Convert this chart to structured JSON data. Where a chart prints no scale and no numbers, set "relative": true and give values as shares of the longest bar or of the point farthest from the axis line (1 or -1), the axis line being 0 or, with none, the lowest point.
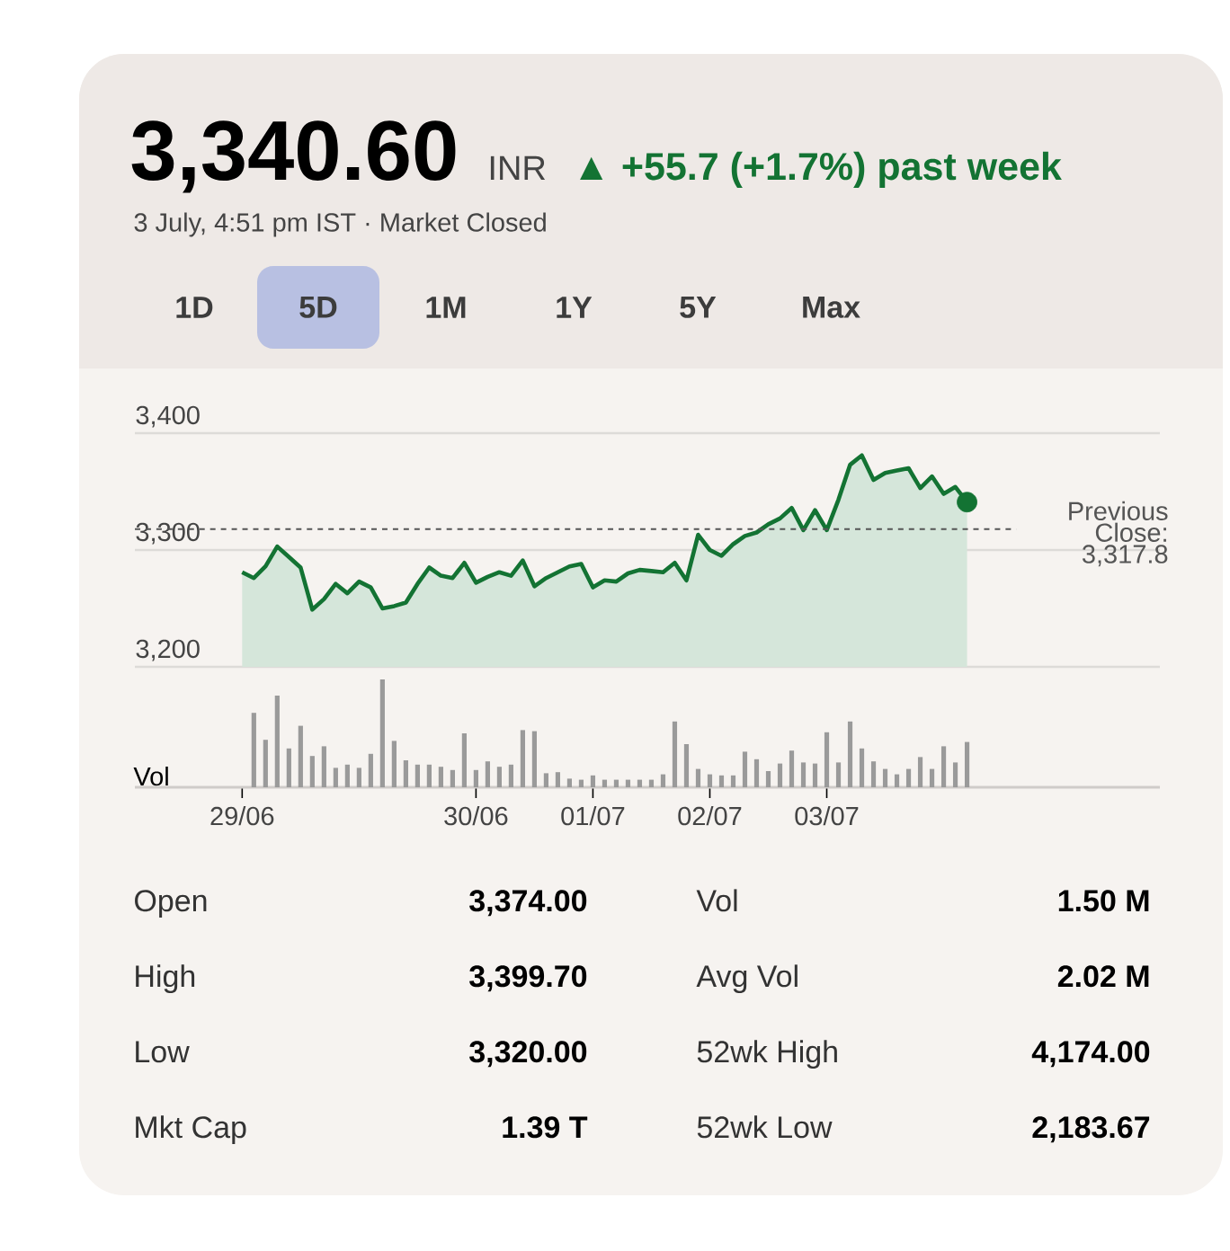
{
  "chart_data": [
    {
      "type": "area",
      "title": "3,340.60",
      "subtitle": "3 July, 4:51 pm IST · Market Closed",
      "annotations": [
        "INR",
        "▲ +55.7 (+1.7%) past week",
        "1D",
        "5D",
        "1M",
        "1Y",
        "5Y",
        "Max"
      ],
      "categories": [
        null,
        null,
        null,
        null,
        null,
        null,
        null,
        null,
        null,
        null,
        null,
        null,
        null,
        null,
        null,
        null,
        null,
        null,
        null,
        null,
        null,
        null,
        null,
        null,
        null,
        null,
        null,
        null,
        null,
        null,
        null,
        null,
        null,
        null,
        null,
        null,
        null,
        null,
        null,
        null,
        null,
        null,
        null,
        null,
        null,
        null,
        null,
        null,
        null,
        null,
        null,
        null,
        null,
        null,
        null,
        null,
        null,
        null,
        null,
        null,
        null,
        null,
        null
      ],
      "series": [
        {
          "type": "area",
          "color": "#137333",
          "values": [
            3281,
            3276,
            3286,
            3303,
            3294,
            3285,
            3249,
            3258,
            3271,
            3263,
            3273,
            3268,
            3250,
            3252,
            3255,
            3271,
            3285,
            3278,
            3276,
            3289,
            3272,
            3277,
            3281,
            3278,
            3291,
            3269,
            3276,
            3281,
            3286,
            3288,
            3268,
            3274,
            3273,
            3280,
            3283,
            3282,
            3281,
            3289,
            3274,
            3313,
            3300,
            3295,
            3305,
            3312,
            3315,
            3322,
            3327,
            3336,
            3317,
            3334,
            3317,
            3343,
            3373,
            3381,
            3360,
            3366,
            3368,
            3370,
            3353,
            3363,
            3348,
            3354,
            3341
          ]
        },
        {
          "type": "scatter",
          "color": "#137333",
          "marker": "circle",
          "values": [
            null,
            null,
            null,
            null,
            null,
            null,
            null,
            null,
            null,
            null,
            null,
            null,
            null,
            null,
            null,
            null,
            null,
            null,
            null,
            null,
            null,
            null,
            null,
            null,
            null,
            null,
            null,
            null,
            null,
            null,
            null,
            null,
            null,
            null,
            null,
            null,
            null,
            null,
            null,
            null,
            null,
            null,
            null,
            null,
            null,
            null,
            null,
            null,
            null,
            null,
            null,
            null,
            null,
            null,
            null,
            null,
            null,
            null,
            null,
            null,
            null,
            null,
            3341
          ]
        }
      ],
      "ylim": [
        3200,
        3400
      ],
      "yticks": [
        {
          "value": 3200,
          "label": "3,200"
        },
        {
          "value": 3300,
          "label": "3,300"
        },
        {
          "value": 3400,
          "label": "3,400"
        }
      ],
      "tick_labels": "y",
      "grid": "y",
      "ref_lines": [
        {
          "axis": "y",
          "value": 3317.8,
          "label": "Previous Close: 3,317.8",
          "color": "#555555",
          "line_style": "dashed"
        }
      ]
    },
    {
      "type": "bar",
      "relative": true,
      "ylabel": "Vol",
      "color": "#9a9a9a",
      "categories": [
        "29/06",
        null,
        null,
        null,
        null,
        null,
        null,
        null,
        null,
        null,
        null,
        null,
        null,
        null,
        null,
        null,
        null,
        null,
        null,
        null,
        "30/06",
        null,
        null,
        null,
        null,
        null,
        null,
        null,
        null,
        null,
        "01/07",
        null,
        null,
        null,
        null,
        null,
        null,
        null,
        null,
        null,
        "02/07",
        null,
        null,
        null,
        null,
        null,
        null,
        null,
        null,
        null,
        "03/07",
        null,
        null,
        null,
        null,
        null,
        null,
        null,
        null,
        null,
        null,
        null,
        null
      ],
      "values": [
        null,
        0.69,
        0.44,
        0.85,
        0.36,
        0.57,
        0.29,
        0.38,
        0.18,
        0.21,
        0.18,
        0.31,
        1,
        0.43,
        0.25,
        0.21,
        0.21,
        0.19,
        0.16,
        0.5,
        0.16,
        0.24,
        0.19,
        0.21,
        0.53,
        0.52,
        0.13,
        0.14,
        0.08,
        0.07,
        0.11,
        0.07,
        0.07,
        0.07,
        0.07,
        0.07,
        0.12,
        0.61,
        0.4,
        0.17,
        0.12,
        0.11,
        0.11,
        0.33,
        0.26,
        0.15,
        0.22,
        0.34,
        0.23,
        0.22,
        0.51,
        0.23,
        0.61,
        0.36,
        0.24,
        0.17,
        0.12,
        0.17,
        0.28,
        0.17,
        0.38,
        0.23,
        0.42
      ]
    },
    {
      "type": "other",
      "annotations": [
        "Open",
        "3,374.00",
        "High",
        "3,399.70",
        "Low",
        "3,320.00",
        "Mkt Cap",
        "1.39 T",
        "Vol",
        "1.50 M",
        "Avg Vol",
        "2.02 M",
        "52wk High",
        "4,174.00",
        "52wk Low",
        "2,183.67"
      ]
    }
  ]
}
